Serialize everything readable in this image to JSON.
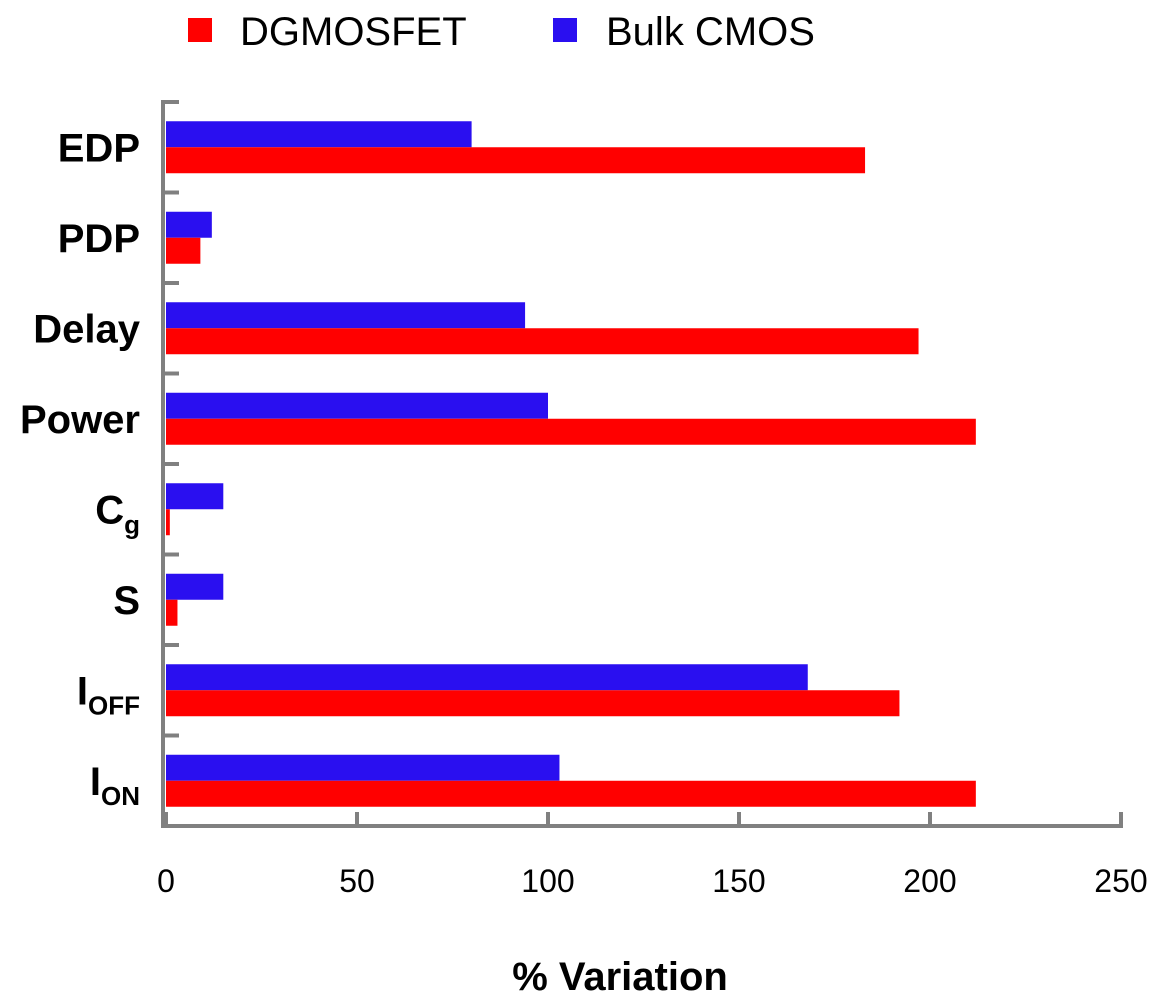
{
  "chart_data": {
    "type": "bar",
    "orientation": "horizontal",
    "categories": [
      {
        "label": "I",
        "sub": "ON"
      },
      {
        "label": "I",
        "sub": "OFF"
      },
      {
        "label": "S",
        "sub": ""
      },
      {
        "label": "C",
        "sub": "g"
      },
      {
        "label": "Power",
        "sub": ""
      },
      {
        "label": "Delay",
        "sub": ""
      },
      {
        "label": "PDP",
        "sub": ""
      },
      {
        "label": "EDP",
        "sub": ""
      }
    ],
    "series": [
      {
        "name": "DGMOSFET",
        "color": "#ff0000",
        "values": [
          212,
          192,
          3,
          1,
          212,
          197,
          9,
          183
        ]
      },
      {
        "name": "Bulk CMOS",
        "color": "#2a0ff0",
        "values": [
          103,
          168,
          15,
          15,
          100,
          94,
          12,
          80
        ]
      }
    ],
    "xlabel": "% Variation",
    "xlim": [
      0,
      250
    ],
    "xticks": [
      "0",
      "50",
      "100",
      "150",
      "200",
      "250"
    ],
    "grid": false,
    "legend_position": "top"
  }
}
